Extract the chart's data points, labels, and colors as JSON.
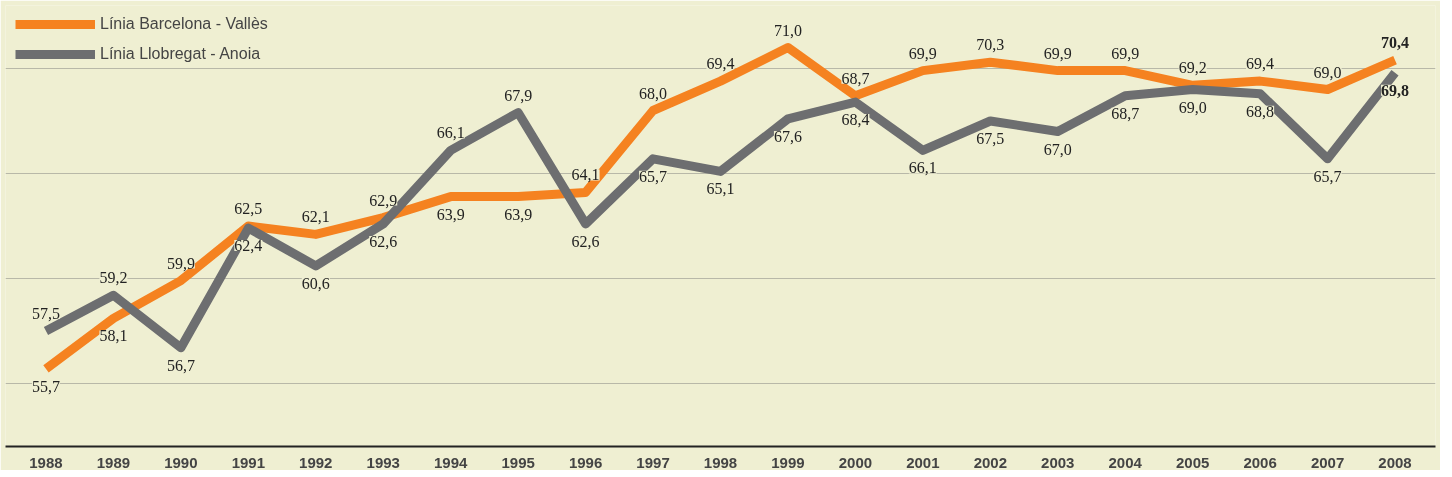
{
  "chart_data": {
    "type": "line",
    "categories": [
      "1988",
      "1989",
      "1990",
      "1991",
      "1992",
      "1993",
      "1994",
      "1995",
      "1996",
      "1997",
      "1998",
      "1999",
      "2000",
      "2001",
      "2002",
      "2003",
      "2004",
      "2005",
      "2006",
      "2007",
      "2008"
    ],
    "series": [
      {
        "name": "Línia Barcelona - Vallès",
        "color": "#f58220",
        "values": [
          55.7,
          58.1,
          59.9,
          62.5,
          62.1,
          62.9,
          63.9,
          63.9,
          64.1,
          68.0,
          69.4,
          71.0,
          68.7,
          69.9,
          70.3,
          69.9,
          69.9,
          69.2,
          69.4,
          69.0,
          70.4
        ],
        "value_labels": [
          "55,7",
          "58,1",
          "59,9",
          "62,5",
          "62,1",
          "62,9",
          "63,9",
          "63,9",
          "64,1",
          "68,0",
          "69,4",
          "71,0",
          "68,7",
          "69,9",
          "70,3",
          "69,9",
          "69,9",
          "69,2",
          "69,4",
          "69,0",
          "70,4"
        ]
      },
      {
        "name": "Línia Llobregat - Anoia",
        "color": "#6d6e70",
        "values": [
          57.5,
          59.2,
          56.7,
          62.4,
          60.6,
          62.6,
          66.1,
          67.9,
          62.6,
          65.7,
          65.1,
          67.6,
          68.4,
          66.1,
          67.5,
          67.0,
          68.7,
          69.0,
          68.8,
          65.7,
          69.8
        ],
        "value_labels": [
          "57,5",
          "59,2",
          "56,7",
          "62,4",
          "60,6",
          "62,6",
          "66,1",
          "67,9",
          "62,6",
          "65,7",
          "65,1",
          "67,6",
          "68,4",
          "66,1",
          "67,5",
          "67,0",
          "68,7",
          "69,0",
          "68,8",
          "65,7",
          "69,8"
        ]
      }
    ],
    "ylim": [
      52,
      73
    ],
    "yticks": [
      {
        "value": 55,
        "label": null
      },
      {
        "value": 60,
        "label": null
      },
      {
        "value": 65,
        "label": null
      },
      {
        "value": 70,
        "label": null
      }
    ],
    "grid": "y",
    "legend": "top left",
    "tick_labels": "x",
    "marker": "none",
    "line_style": "solid"
  }
}
